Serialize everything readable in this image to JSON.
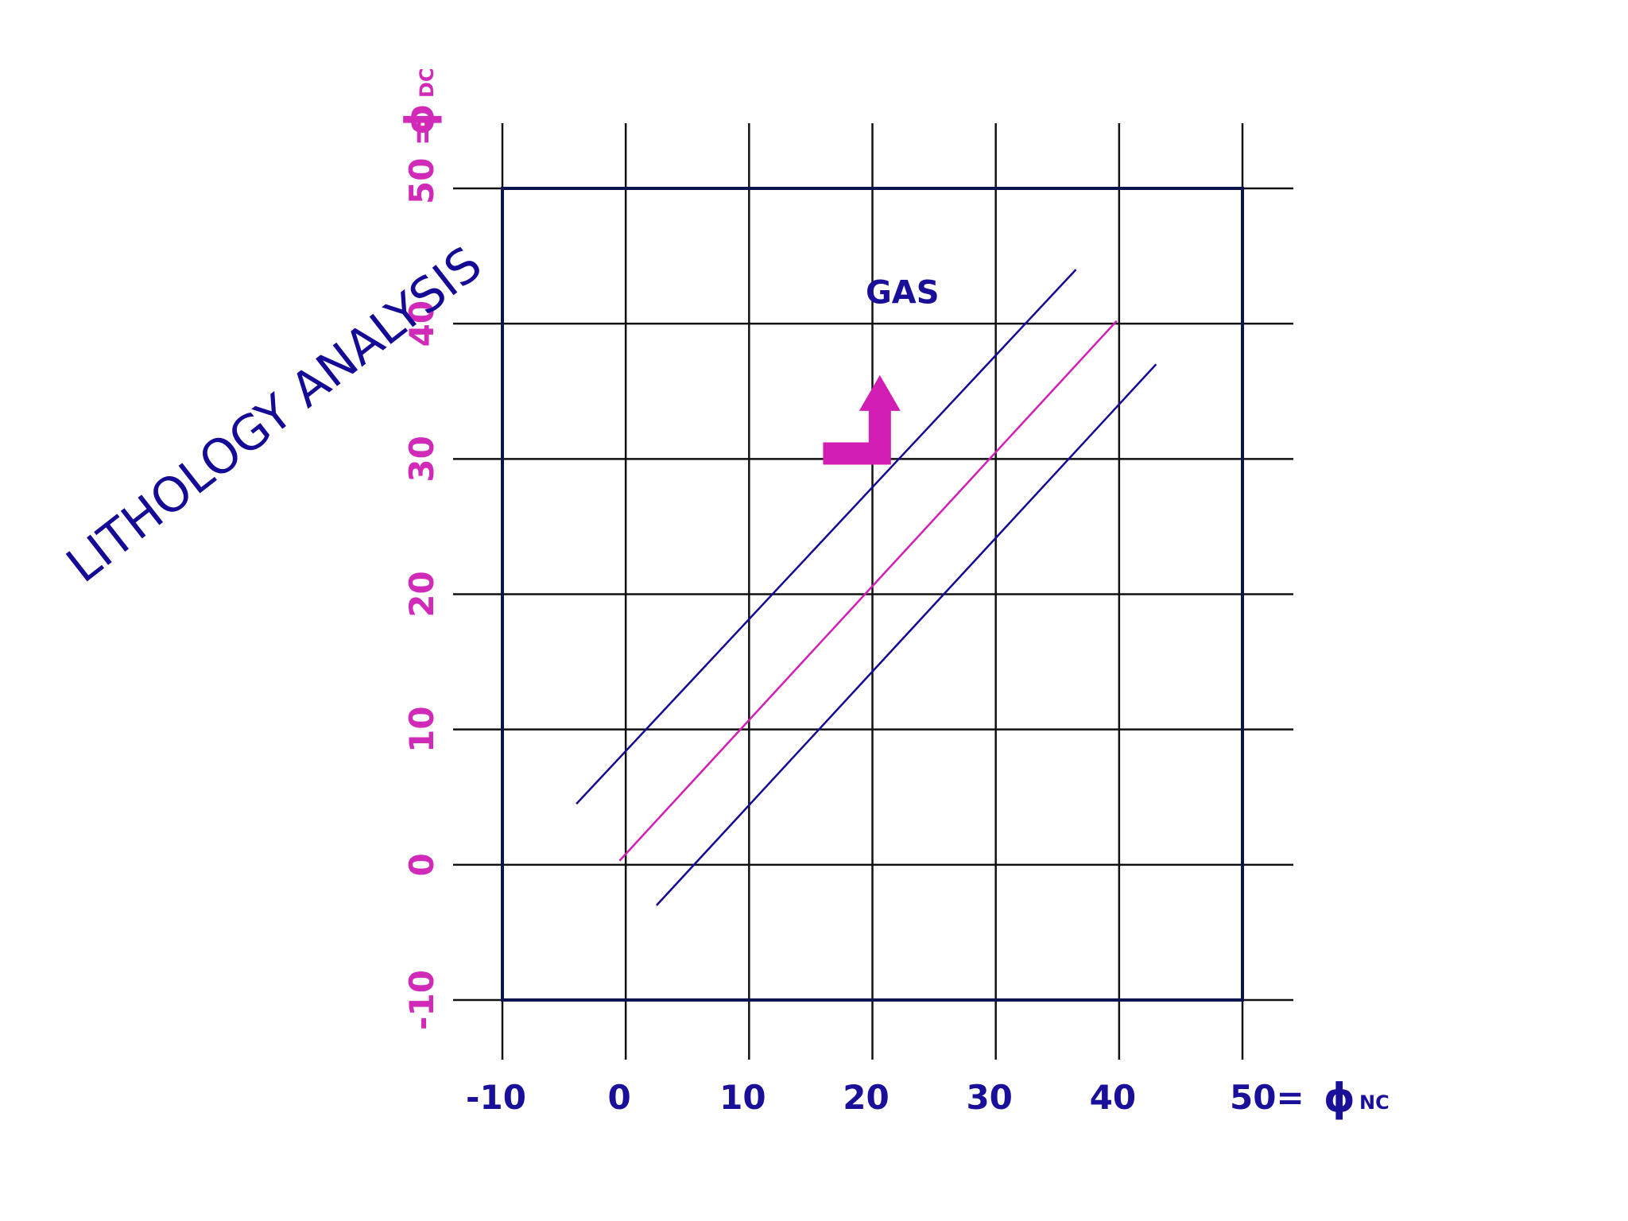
{
  "chart_data": {
    "type": "line",
    "title": "LITHOLOGY ANALYSIS",
    "xlabel": "ϕ",
    "xlabel_subscript": "NC",
    "ylabel": "ϕ",
    "ylabel_subscript": "DC",
    "xlim": [
      -10,
      50
    ],
    "ylim": [
      -10,
      50
    ],
    "x_ticks": [
      -10,
      0,
      10,
      20,
      30,
      40,
      50
    ],
    "x_tick_labels": [
      "-10",
      "0",
      "10",
      "20",
      "30",
      "40",
      "50="
    ],
    "y_ticks": [
      -10,
      0,
      10,
      20,
      30,
      40,
      50
    ],
    "y_tick_labels": [
      "-10",
      "0",
      "10",
      "20",
      "30",
      "40",
      "50 ="
    ],
    "grid": true,
    "series": [
      {
        "color": "#140a96",
        "points": [
          [
            -4,
            4.5
          ],
          [
            36.5,
            44
          ]
        ]
      },
      {
        "color": "#d21eb4",
        "points": [
          [
            -0.5,
            0.3
          ],
          [
            39.8,
            40.2
          ]
        ]
      },
      {
        "color": "#140a96",
        "points": [
          [
            2.5,
            -3
          ],
          [
            43,
            37
          ]
        ]
      }
    ],
    "annotations": [
      {
        "text": "GAS",
        "x": 20.5,
        "y": 41.5
      }
    ],
    "arrow": {
      "color": "#d21eb4",
      "from": [
        16,
        30.4
      ],
      "corner": [
        20.6,
        30.4
      ],
      "to": [
        20.6,
        36.2
      ]
    },
    "colors": {
      "x_text": "#1a0f99",
      "y_text": "#d22ab8",
      "title": "#140a96",
      "grid": "#111111"
    }
  }
}
